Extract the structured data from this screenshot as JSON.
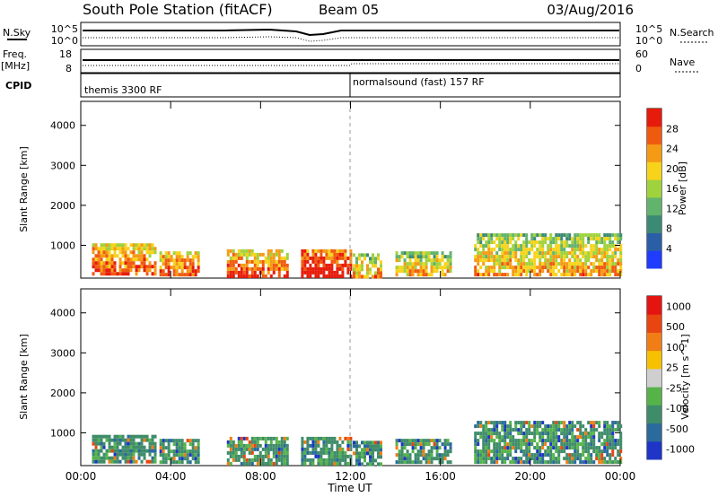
{
  "header": {
    "title": "South Pole Station (fitACF)",
    "beam": "Beam 05",
    "date": "03/Aug/2016"
  },
  "noise_panel": {
    "left_label": "N.Sky",
    "right_label": "N.Search",
    "left_ticks": [
      "10^5",
      "10^0"
    ],
    "right_ticks": [
      "10^5",
      "10^0"
    ]
  },
  "freq_panel": {
    "left_label_1": "Freq.",
    "left_label_2": "[MHz]",
    "right_label": "Nave",
    "left_ticks": [
      "18",
      "8"
    ],
    "right_ticks": [
      "60",
      "0"
    ]
  },
  "cpid_panel": {
    "label": "CPID",
    "modes": [
      {
        "name": "themis 3300 RF",
        "start_hour": 0
      },
      {
        "name": "normalsound (fast) 157 RF",
        "start_hour": 12
      }
    ]
  },
  "x_axis": {
    "label": "Time UT",
    "ticks": [
      "00:00",
      "04:00",
      "08:00",
      "12:00",
      "16:00",
      "20:00",
      "00:00"
    ],
    "range_hours": [
      0,
      24
    ]
  },
  "chart_data": [
    {
      "type": "heatmap",
      "name": "power",
      "ylabel": "Slant Range [km]",
      "ylim": [
        180,
        4600
      ],
      "yticks": [
        "1000",
        "2000",
        "3000",
        "4000"
      ],
      "ytick_values": [
        1000,
        2000,
        3000,
        4000
      ],
      "colorbar": {
        "label": "Power [dB]",
        "range": [
          0,
          32
        ],
        "ticks": [
          "4",
          "8",
          "12",
          "16",
          "20",
          "24",
          "28"
        ],
        "tick_values": [
          4,
          8,
          12,
          16,
          20,
          24,
          28
        ],
        "colors": [
          "#1f3cff",
          "#2a5fa8",
          "#3d8a74",
          "#62b36b",
          "#9fd23d",
          "#f7d31a",
          "#f59a14",
          "#f05a0f",
          "#e71b0b"
        ]
      },
      "echo_blocks": [
        {
          "start": 0.5,
          "end": 3.3,
          "range_min": 250,
          "range_max": 1050,
          "level": "high"
        },
        {
          "start": 3.5,
          "end": 5.2,
          "range_min": 250,
          "range_max": 850,
          "level": "high"
        },
        {
          "start": 6.5,
          "end": 9.2,
          "range_min": 250,
          "range_max": 900,
          "level": "high"
        },
        {
          "start": 9.8,
          "end": 12.0,
          "range_min": 250,
          "range_max": 900,
          "level": "very high"
        },
        {
          "start": 12.1,
          "end": 13.3,
          "range_min": 250,
          "range_max": 800,
          "level": "medium"
        },
        {
          "start": 14.0,
          "end": 16.5,
          "range_min": 250,
          "range_max": 850,
          "level": "medium"
        },
        {
          "start": 17.5,
          "end": 24.0,
          "range_min": 250,
          "range_max": 1300,
          "level": "medium"
        }
      ]
    },
    {
      "type": "heatmap",
      "name": "velocity",
      "ylabel": "Slant Range [km]",
      "ylim": [
        180,
        4600
      ],
      "yticks": [
        "1000",
        "2000",
        "3000",
        "4000"
      ],
      "ytick_values": [
        1000,
        2000,
        3000,
        4000
      ],
      "colorbar": {
        "label": "Velocity [m s^-1]",
        "ticks": [
          "1000",
          "500",
          "100",
          "25",
          "-25",
          "-100",
          "-500",
          "-1000"
        ],
        "tick_values": [
          1000,
          500,
          100,
          25,
          -25,
          -100,
          -500,
          -1000
        ],
        "colors": [
          "#1e35c8",
          "#2a6a9c",
          "#3f8c6a",
          "#55b34a",
          "#cfcfcf",
          "#f7c000",
          "#f07d16",
          "#e84510",
          "#e61410"
        ]
      },
      "echo_blocks": [
        {
          "start": 0.5,
          "end": 3.3,
          "range_min": 250,
          "range_max": 950,
          "level": "low"
        },
        {
          "start": 3.5,
          "end": 5.2,
          "range_min": 250,
          "range_max": 850,
          "level": "low"
        },
        {
          "start": 6.5,
          "end": 9.2,
          "range_min": 250,
          "range_max": 900,
          "level": "low"
        },
        {
          "start": 9.8,
          "end": 12.0,
          "range_min": 250,
          "range_max": 900,
          "level": "low"
        },
        {
          "start": 12.1,
          "end": 13.3,
          "range_min": 250,
          "range_max": 800,
          "level": "low"
        },
        {
          "start": 14.0,
          "end": 16.5,
          "range_min": 250,
          "range_max": 850,
          "level": "low"
        },
        {
          "start": 17.5,
          "end": 24.0,
          "range_min": 250,
          "range_max": 1300,
          "level": "low"
        }
      ]
    }
  ]
}
